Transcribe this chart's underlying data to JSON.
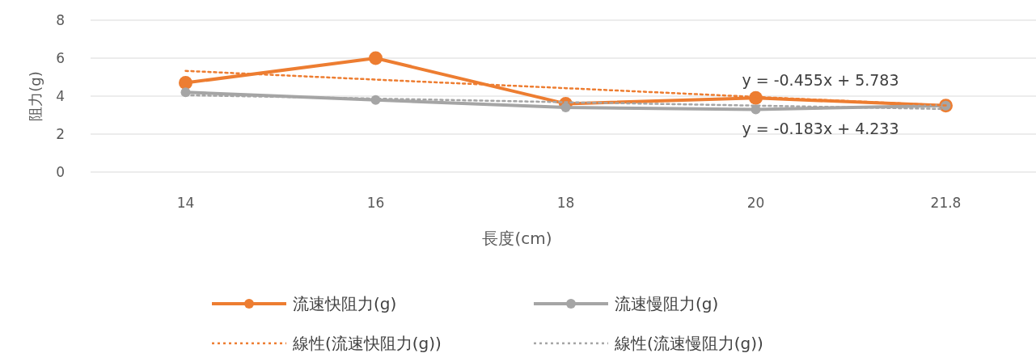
{
  "chart_data": {
    "type": "line",
    "xlabel": "長度(cm)",
    "ylabel": "阻力(g)",
    "categories": [
      "14",
      "16",
      "18",
      "20",
      "21.8"
    ],
    "ylim": [
      0,
      8
    ],
    "yticks": [
      0,
      2,
      4,
      6,
      8
    ],
    "grid": "y",
    "legend": "bottom",
    "series": [
      {
        "name": "流速快阻力(g)",
        "color": "#ed7d31",
        "values": [
          4.7,
          6.0,
          3.6,
          3.9,
          3.5
        ],
        "marker": "circle",
        "line_style": "solid"
      },
      {
        "name": "流速慢阻力(g)",
        "color": "#a5a5a5",
        "values": [
          4.2,
          3.8,
          3.4,
          3.3,
          3.5
        ],
        "marker": "circle",
        "line_style": "solid"
      },
      {
        "name": "線性(流速快阻力(g))",
        "color": "#ed7d31",
        "values": [
          5.33,
          4.87,
          4.42,
          3.96,
          3.51
        ],
        "marker": "none",
        "line_style": "dotted"
      },
      {
        "name": "線性(流速慢阻力(g))",
        "color": "#a5a5a5",
        "values": [
          4.05,
          3.87,
          3.68,
          3.5,
          3.32
        ],
        "marker": "none",
        "line_style": "dotted"
      }
    ],
    "annotations": [
      "y = -0.455x + 5.783",
      "y = -0.183x + 4.233"
    ]
  }
}
